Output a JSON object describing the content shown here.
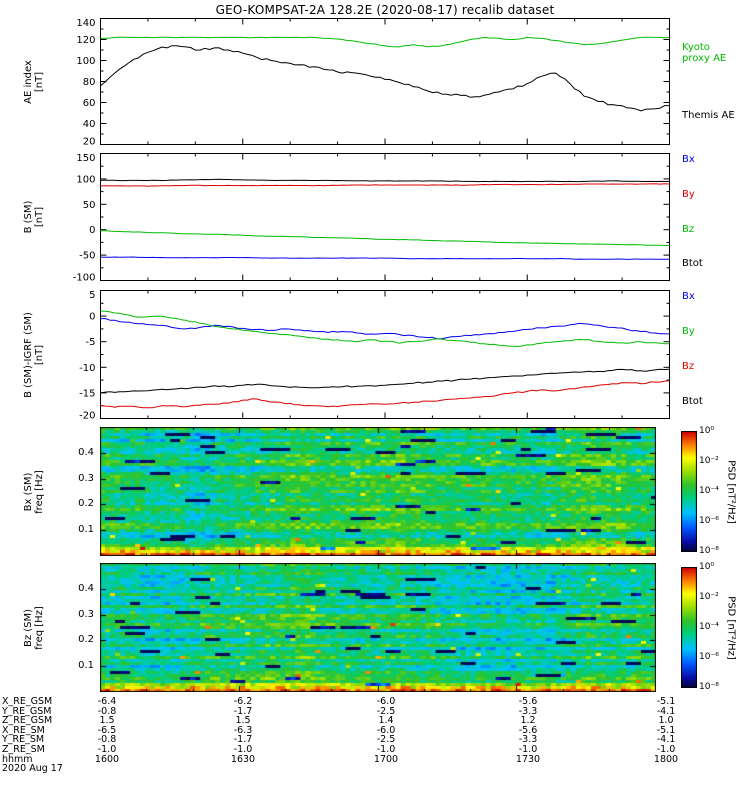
{
  "title": "GEO-KOMPSAT-2A 128.2E (2020-08-17) recalib dataset",
  "date_label": "2020 Aug 17",
  "colors": {
    "green": "#00bb00",
    "blue": "#0000ee",
    "red": "#dd0000",
    "black": "#000000",
    "background": "#ffffff"
  },
  "time_axis": {
    "tick_labels": [
      "1600",
      "1630",
      "1700",
      "1730",
      "1800"
    ],
    "tick_minutes": [
      0,
      30,
      60,
      90,
      120
    ],
    "minor_step_minutes": 10,
    "range_minutes": [
      0,
      120
    ]
  },
  "colorbar": {
    "label": "PSD [nT²/Hz]",
    "tick_labels": [
      "10⁰",
      "10⁻²",
      "10⁻⁴",
      "10⁻⁶",
      "10⁻⁸"
    ],
    "value_range_log10": [
      -8,
      0
    ]
  },
  "footer": {
    "rows": [
      {
        "label": "X_RE_GSM",
        "values": [
          "-6.4",
          "-6.2",
          "-6.0",
          "-5.6",
          "-5.1"
        ]
      },
      {
        "label": "Y_RE_GSM",
        "values": [
          "-0.8",
          "-1.7",
          "-2.5",
          "-3.3",
          "-4.1"
        ]
      },
      {
        "label": "Z_RE_GSM",
        "values": [
          "1.5",
          "1.5",
          "1.4",
          "1.2",
          "1.0"
        ]
      },
      {
        "label": "X_RE_SM",
        "values": [
          "-6.5",
          "-6.3",
          "-6.0",
          "-5.6",
          "-5.1"
        ]
      },
      {
        "label": "Y_RE_SM",
        "values": [
          "-0.8",
          "-1.7",
          "-2.5",
          "-3.3",
          "-4.1"
        ]
      },
      {
        "label": "Z_RE_SM",
        "values": [
          "-1.0",
          "-1.0",
          "-1.0",
          "-1.0",
          "-1.0"
        ]
      },
      {
        "label": "hhmm",
        "values": [
          "1600",
          "1630",
          "1700",
          "1730",
          "1800"
        ]
      }
    ]
  },
  "chart_data": [
    {
      "id": "ae-index",
      "type": "line",
      "ylabel_lines": [
        "AE index",
        "[nT]"
      ],
      "ylim": [
        20,
        140
      ],
      "yticks": [
        20,
        40,
        60,
        80,
        100,
        120,
        140
      ],
      "seed": 11,
      "jitter": 1.0,
      "x_minutes": [
        0,
        3,
        6,
        9,
        12,
        15,
        18,
        21,
        24,
        27,
        30,
        33,
        36,
        39,
        42,
        45,
        48,
        51,
        54,
        57,
        60,
        63,
        66,
        69,
        72,
        75,
        78,
        81,
        84,
        87,
        90,
        93,
        96,
        99,
        102,
        105,
        108,
        111,
        114,
        117,
        120
      ],
      "series": [
        {
          "name": "Kyoto proxy AE",
          "color_key": "green",
          "jitter": 0.4,
          "values": [
            121,
            122,
            122,
            122,
            122,
            122,
            122,
            122,
            122,
            122,
            122,
            122,
            122,
            122,
            122,
            122,
            121,
            120,
            118,
            116,
            114,
            113,
            115,
            113,
            114,
            117,
            120,
            122,
            121,
            120,
            122,
            121,
            119,
            117,
            115,
            116,
            118,
            120,
            122,
            122,
            122
          ]
        },
        {
          "name": "Themis AE",
          "color_key": "black",
          "jitter": 1.2,
          "values": [
            76,
            88,
            98,
            106,
            111,
            114,
            113,
            110,
            112,
            110,
            107,
            103,
            100,
            98,
            96,
            94,
            91,
            88,
            88,
            85,
            82,
            79,
            75,
            71,
            68,
            68,
            65,
            67,
            70,
            73,
            78,
            85,
            88,
            78,
            66,
            61,
            58,
            55,
            52,
            54,
            57
          ]
        }
      ],
      "legend": [
        {
          "lines": [
            "Kyoto",
            "proxy AE"
          ],
          "color_key": "green",
          "pos": 0.27
        },
        {
          "lines": [
            "Themis AE"
          ],
          "color_key": "black",
          "pos": 0.76
        }
      ]
    },
    {
      "id": "b-sm",
      "type": "line",
      "ylabel_lines": [
        "B (SM)",
        "[nT]"
      ],
      "ylim": [
        -100,
        150
      ],
      "yticks": [
        -100,
        -50,
        0,
        50,
        100,
        150
      ],
      "seed": 22,
      "jitter": 0.4,
      "x_minutes": [
        0,
        6,
        12,
        18,
        24,
        30,
        36,
        42,
        48,
        54,
        60,
        66,
        72,
        78,
        84,
        90,
        96,
        102,
        108,
        114,
        120
      ],
      "series": [
        {
          "name": "Bx",
          "color_key": "blue",
          "values": [
            -54,
            -54,
            -55,
            -55,
            -55,
            -55,
            -56,
            -56,
            -56,
            -56,
            -56,
            -57,
            -57,
            -57,
            -57,
            -57,
            -57,
            -58,
            -58,
            -58,
            -58
          ]
        },
        {
          "name": "By",
          "color_key": "red",
          "values": [
            86,
            86,
            86,
            87,
            87,
            87,
            87,
            87,
            87,
            88,
            88,
            88,
            88,
            88,
            89,
            89,
            89,
            90,
            90,
            90,
            90
          ]
        },
        {
          "name": "Bz",
          "color_key": "green",
          "values": [
            -2,
            -4,
            -6,
            -8,
            -9,
            -11,
            -13,
            -14,
            -16,
            -17,
            -19,
            -20,
            -22,
            -23,
            -25,
            -26,
            -27,
            -28,
            -29,
            -30,
            -31
          ]
        },
        {
          "name": "Btot",
          "color_key": "black",
          "values": [
            97,
            97,
            97,
            98,
            99,
            98,
            97,
            97,
            97,
            96,
            96,
            96,
            96,
            95,
            95,
            95,
            95,
            95,
            96,
            95,
            95
          ]
        }
      ],
      "legend": [
        {
          "lines": [
            "Bx"
          ],
          "color_key": "blue",
          "pos": 0.05
        },
        {
          "lines": [
            "By"
          ],
          "color_key": "red",
          "pos": 0.32
        },
        {
          "lines": [
            "Bz"
          ],
          "color_key": "green",
          "pos": 0.59
        },
        {
          "lines": [
            "Btot"
          ],
          "color_key": "black",
          "pos": 0.86
        }
      ]
    },
    {
      "id": "b-sm-igrf",
      "type": "line",
      "ylabel_lines": [
        "B (SM)-IGRF (SM)",
        "[nT]"
      ],
      "ylim": [
        -20,
        5
      ],
      "yticks": [
        -20,
        -15,
        -10,
        -5,
        0,
        5
      ],
      "seed": 33,
      "jitter": 0.15,
      "x_minutes": [
        0,
        3,
        6,
        9,
        12,
        15,
        18,
        21,
        24,
        27,
        30,
        33,
        36,
        39,
        42,
        45,
        48,
        51,
        54,
        57,
        60,
        63,
        66,
        69,
        72,
        75,
        78,
        81,
        84,
        87,
        90,
        93,
        96,
        99,
        102,
        105,
        108,
        111,
        114,
        117,
        120
      ],
      "series": [
        {
          "name": "Bx",
          "color_key": "blue",
          "values": [
            -0.5,
            -0.8,
            -1.2,
            -1.5,
            -1.8,
            -2.2,
            -2.5,
            -2.2,
            -1.8,
            -2.0,
            -2.4,
            -2.6,
            -2.8,
            -2.5,
            -2.7,
            -3.0,
            -3.2,
            -3.0,
            -3.3,
            -3.5,
            -3.4,
            -3.6,
            -3.8,
            -4.2,
            -4.4,
            -4.0,
            -3.8,
            -3.5,
            -3.2,
            -3.0,
            -2.6,
            -2.3,
            -2.0,
            -1.7,
            -1.5,
            -1.8,
            -2.2,
            -2.6,
            -3.0,
            -3.3,
            -3.5
          ]
        },
        {
          "name": "By",
          "color_key": "green",
          "values": [
            1.0,
            0.6,
            0.2,
            -0.2,
            0.0,
            -0.4,
            -0.8,
            -1.4,
            -2.0,
            -2.4,
            -2.8,
            -3.0,
            -3.4,
            -3.6,
            -3.9,
            -4.2,
            -4.5,
            -4.8,
            -5.0,
            -4.6,
            -4.9,
            -5.3,
            -5.0,
            -4.7,
            -4.5,
            -4.8,
            -5.1,
            -5.4,
            -5.7,
            -5.9,
            -5.6,
            -5.3,
            -5.0,
            -4.8,
            -4.6,
            -4.9,
            -5.1,
            -5.3,
            -5.0,
            -5.2,
            -5.4
          ]
        },
        {
          "name": "Bz",
          "color_key": "red",
          "values": [
            -17.4,
            -17.8,
            -17.6,
            -17.9,
            -17.7,
            -17.5,
            -17.7,
            -17.4,
            -17.2,
            -17.0,
            -16.4,
            -16.2,
            -16.8,
            -17.1,
            -17.3,
            -17.5,
            -17.7,
            -17.5,
            -17.3,
            -17.1,
            -17.2,
            -17.0,
            -16.8,
            -16.6,
            -16.4,
            -16.2,
            -16.0,
            -15.7,
            -15.4,
            -15.0,
            -14.7,
            -14.4,
            -14.6,
            -14.2,
            -13.8,
            -13.5,
            -13.2,
            -13.0,
            -13.2,
            -12.9,
            -12.6
          ]
        },
        {
          "name": "Btot",
          "color_key": "black",
          "values": [
            -15.0,
            -14.9,
            -14.7,
            -14.6,
            -14.4,
            -14.3,
            -14.2,
            -13.9,
            -13.6,
            -13.8,
            -13.5,
            -13.3,
            -13.6,
            -13.8,
            -13.9,
            -14.0,
            -13.9,
            -13.8,
            -13.7,
            -13.6,
            -13.5,
            -13.3,
            -13.1,
            -12.9,
            -12.7,
            -12.5,
            -12.3,
            -12.1,
            -11.9,
            -11.7,
            -11.5,
            -11.3,
            -11.2,
            -11.0,
            -10.9,
            -10.8,
            -10.6,
            -10.5,
            -10.7,
            -10.5,
            -10.4
          ]
        }
      ],
      "legend": [
        {
          "lines": [
            "Bx"
          ],
          "color_key": "blue",
          "pos": 0.05
        },
        {
          "lines": [
            "By"
          ],
          "color_key": "green",
          "pos": 0.32
        },
        {
          "lines": [
            "Bz"
          ],
          "color_key": "red",
          "pos": 0.59
        },
        {
          "lines": [
            "Btot"
          ],
          "color_key": "black",
          "pos": 0.86
        }
      ]
    },
    {
      "id": "bx-spectrogram",
      "type": "heatmap",
      "ylabel_lines": [
        "Bx (SM)",
        "freq [Hz]"
      ],
      "ylim": [
        0,
        0.5
      ],
      "yticks": [
        0.1,
        0.2,
        0.3,
        0.4
      ],
      "seed": 4,
      "base": 0.52,
      "summary": "Bx dynamic power spectral density 1600-1800 UT; broadband power mostly 1e-4 to 1e-2 nT²/Hz (green/yellow) with horizontal banding, scattered low-power dark-blue streaks, and strong power >1e-1 (orange/red band) below ~0.03 Hz."
    },
    {
      "id": "bz-spectrogram",
      "type": "heatmap",
      "ylabel_lines": [
        "Bz (SM)",
        "freq [Hz]"
      ],
      "ylim": [
        0,
        0.5
      ],
      "yticks": [
        0.1,
        0.2,
        0.3,
        0.4
      ],
      "seed": 5,
      "base": 0.5,
      "summary": "Bz dynamic power spectral density 1600-1800 UT; mostly 1e-4 to 1e-2 nT²/Hz (green/cyan) with horizontal streaks and enhanced power (yellow/red) at lowest frequencies below ~0.03 Hz."
    }
  ]
}
